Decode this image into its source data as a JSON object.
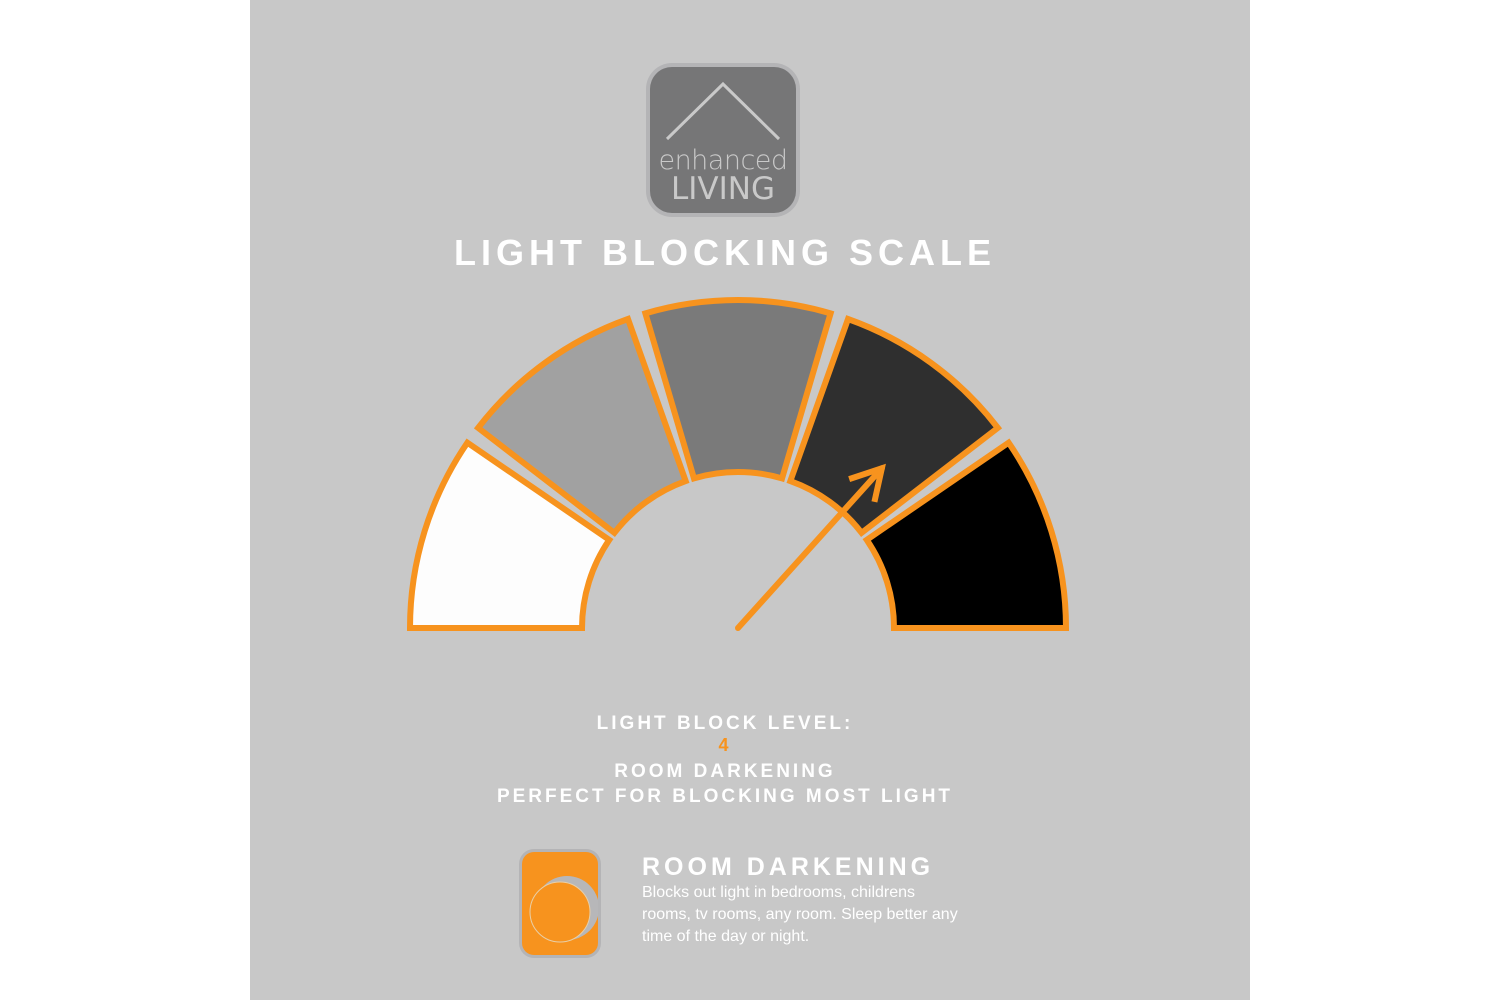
{
  "logo": {
    "line1": "enhanced",
    "line2": "LIVING"
  },
  "title": "LIGHT BLOCKING SCALE",
  "gauge": {
    "levels": 5,
    "current_level": 4,
    "segment_colors": [
      "#fdfdfd",
      "#a1a1a1",
      "#7a7a7a",
      "#2f2f2f",
      "#000000"
    ],
    "outline_color": "#f7931e"
  },
  "info": {
    "level_label": "LIGHT BLOCK LEVEL:",
    "level_value": "4",
    "type": "ROOM DARKENING",
    "tagline": "PERFECT FOR BLOCKING MOST LIGHT"
  },
  "feature": {
    "icon": "moon-icon",
    "title": "ROOM DARKENING",
    "description": "Blocks out light in bedrooms, childrens rooms, tv rooms, any room. Sleep better any time of the day or night."
  },
  "colors": {
    "accent": "#f7931e",
    "background": "#c8c8c8"
  }
}
